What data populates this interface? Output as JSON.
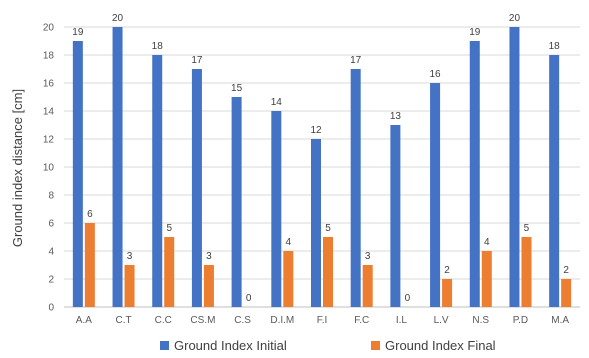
{
  "chart_data": {
    "type": "bar",
    "categories": [
      "A.A",
      "C.T",
      "C.C",
      "CS.M",
      "C.S",
      "D.I.M",
      "F.I",
      "F.C",
      "I.L",
      "L.V",
      "N.S",
      "P.D",
      "M.A"
    ],
    "series": [
      {
        "name": "Ground Index Initial",
        "values": [
          19,
          20,
          18,
          17,
          15,
          14,
          12,
          17,
          13,
          16,
          19,
          20,
          18
        ],
        "color": "#4472C4"
      },
      {
        "name": "Ground Index Final",
        "values": [
          6,
          3,
          5,
          3,
          0,
          4,
          5,
          3,
          0,
          2,
          4,
          5,
          2
        ],
        "color": "#ED7D31"
      }
    ],
    "data_labels": {
      "initial": [
        "19",
        "20",
        "18",
        "17",
        "15",
        "14",
        "12",
        "17",
        "13",
        "16",
        "19",
        "20",
        "18"
      ],
      "final": [
        "6",
        "3",
        "5",
        "3",
        "0",
        "4",
        "5",
        "3",
        "0",
        "2",
        "4",
        "5",
        "2"
      ]
    },
    "ylabel": "Ground index distance [cm]",
    "xlabel": "",
    "ylim": [
      0,
      20
    ],
    "yticks": [
      0,
      2,
      4,
      6,
      8,
      10,
      12,
      14,
      16,
      18,
      20
    ],
    "grid": true,
    "legend_position": "bottom"
  }
}
